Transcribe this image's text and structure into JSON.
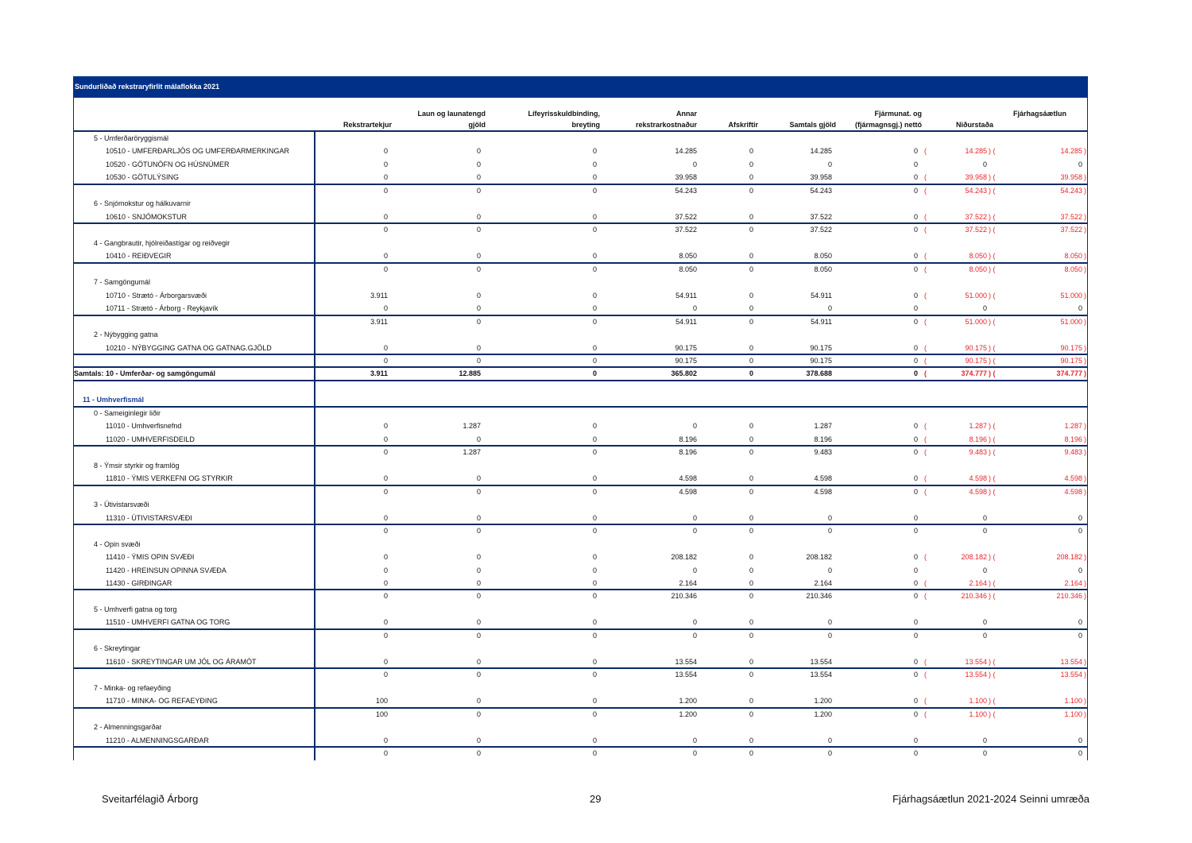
{
  "title": "Sundurliðað rekstraryfirlit málaflokka 2021",
  "columns": {
    "rekstrartekjur": "Rekstrartekjur",
    "laun_1": "Laun og launatengd",
    "laun_2": "gjöld",
    "lifeyris_1": "Lífeyrisskuldbinding,",
    "lifeyris_2": "breyting",
    "annar_1": "Annar",
    "annar_2": "rekstrarkostnaður",
    "afskriftir": "Afskriftir",
    "samtals": "Samtals gjöld",
    "fjarmunat_1": "Fjármunat. og",
    "fjarmunat_2": "(fjármagnsgj.) nettó",
    "nidurstada": "Niðurstaða",
    "fjarhagsaetlun": "Fjárhagsáætlun"
  },
  "colors": {
    "header_bg": "#003087",
    "line": "#0b2a66",
    "negative": "#e8232a",
    "section": "#1f3f9a"
  },
  "rows": [
    {
      "type": "group",
      "label": "5 - Umferðaröryggismál"
    },
    {
      "type": "item",
      "label": "10510 - UMFERÐARLJÓS OG UMFERÐARMERKINGAR",
      "v": [
        "0",
        "0",
        "0",
        "14.285",
        "0",
        "14.285",
        "0",
        "14.285",
        "14.285"
      ],
      "neg": true
    },
    {
      "type": "item",
      "label": "10520 - GÖTUNÖFN OG HÚSNÚMER",
      "v": [
        "0",
        "0",
        "0",
        "0",
        "0",
        "0",
        "0",
        "0",
        "0"
      ],
      "neg": false
    },
    {
      "type": "item",
      "label": "10530 - GÖTULÝSING",
      "v": [
        "0",
        "0",
        "0",
        "39.958",
        "0",
        "39.958",
        "0",
        "39.958",
        "39.958"
      ],
      "neg": true
    },
    {
      "type": "subtotal",
      "label": "",
      "v": [
        "0",
        "0",
        "0",
        "54.243",
        "0",
        "54.243",
        "0",
        "54.243",
        "54.243"
      ],
      "neg": true
    },
    {
      "type": "group",
      "label": "6 - Snjómokstur og hálkuvarnir"
    },
    {
      "type": "item",
      "label": "10610 - SNJÓMOKSTUR",
      "v": [
        "0",
        "0",
        "0",
        "37.522",
        "0",
        "37.522",
        "0",
        "37.522",
        "37.522"
      ],
      "neg": true
    },
    {
      "type": "subtotal",
      "label": "",
      "v": [
        "0",
        "0",
        "0",
        "37.522",
        "0",
        "37.522",
        "0",
        "37.522",
        "37.522"
      ],
      "neg": true
    },
    {
      "type": "group",
      "label": "4 - Gangbrautir, hjólreiðastígar og reiðvegir"
    },
    {
      "type": "item",
      "label": "10410 - REIÐVEGIR",
      "v": [
        "0",
        "0",
        "0",
        "8.050",
        "0",
        "8.050",
        "0",
        "8.050",
        "8.050"
      ],
      "neg": true
    },
    {
      "type": "subtotal",
      "label": "",
      "v": [
        "0",
        "0",
        "0",
        "8.050",
        "0",
        "8.050",
        "0",
        "8.050",
        "8.050"
      ],
      "neg": true
    },
    {
      "type": "group",
      "label": "7 - Samgöngumál"
    },
    {
      "type": "item",
      "label": "10710 - Strætó - Árborgarsvæði",
      "v": [
        "3.911",
        "0",
        "0",
        "54.911",
        "0",
        "54.911",
        "0",
        "51.000",
        "51.000"
      ],
      "neg": true
    },
    {
      "type": "item",
      "label": "10711 - Strætó - Árborg - Reykjavík",
      "v": [
        "0",
        "0",
        "0",
        "0",
        "0",
        "0",
        "0",
        "0",
        "0"
      ],
      "neg": false
    },
    {
      "type": "subtotal",
      "label": "",
      "v": [
        "3.911",
        "0",
        "0",
        "54.911",
        "0",
        "54.911",
        "0",
        "51.000",
        "51.000"
      ],
      "neg": true
    },
    {
      "type": "group",
      "label": "2 - Nýbygging gatna"
    },
    {
      "type": "item",
      "label": "10210 - NÝBYGGING GATNA OG GATNAG.GJÖLD",
      "v": [
        "0",
        "0",
        "0",
        "90.175",
        "0",
        "90.175",
        "0",
        "90.175",
        "90.175"
      ],
      "neg": true
    },
    {
      "type": "subtotal",
      "label": "",
      "v": [
        "0",
        "0",
        "0",
        "90.175",
        "0",
        "90.175",
        "0",
        "90.175",
        "90.175"
      ],
      "neg": true
    },
    {
      "type": "total",
      "label": "Samtals: 10 - Umferðar- og samgöngumál",
      "v": [
        "3.911",
        "12.885",
        "0",
        "365.802",
        "0",
        "378.688",
        "0",
        "374.777",
        "374.777"
      ],
      "neg": true
    },
    {
      "type": "blank",
      "label": ""
    },
    {
      "type": "section",
      "label": "11 - Umhverfismál"
    },
    {
      "type": "group",
      "label": "0 - Sameiginlegir liðir"
    },
    {
      "type": "item",
      "label": "11010 - Umhverfisnefnd",
      "v": [
        "0",
        "1.287",
        "0",
        "0",
        "0",
        "1.287",
        "0",
        "1.287",
        "1.287"
      ],
      "neg": true
    },
    {
      "type": "item",
      "label": "11020 - UMHVERFISDEILD",
      "v": [
        "0",
        "0",
        "0",
        "8.196",
        "0",
        "8.196",
        "0",
        "8.196",
        "8.196"
      ],
      "neg": true
    },
    {
      "type": "subtotal",
      "label": "",
      "v": [
        "0",
        "1.287",
        "0",
        "8.196",
        "0",
        "9.483",
        "0",
        "9.483",
        "9.483"
      ],
      "neg": true
    },
    {
      "type": "group",
      "label": "8 - Ýmsir styrkir og framlög"
    },
    {
      "type": "item",
      "label": "11810 - ÝMIS VERKEFNI OG STYRKIR",
      "v": [
        "0",
        "0",
        "0",
        "4.598",
        "0",
        "4.598",
        "0",
        "4.598",
        "4.598"
      ],
      "neg": true
    },
    {
      "type": "subtotal",
      "label": "",
      "v": [
        "0",
        "0",
        "0",
        "4.598",
        "0",
        "4.598",
        "0",
        "4.598",
        "4.598"
      ],
      "neg": true
    },
    {
      "type": "group",
      "label": "3 - Útivistarsvæði"
    },
    {
      "type": "item",
      "label": "11310 - ÚTIVISTARSVÆÐI",
      "v": [
        "0",
        "0",
        "0",
        "0",
        "0",
        "0",
        "0",
        "0",
        "0"
      ],
      "neg": false
    },
    {
      "type": "subtotal",
      "label": "",
      "v": [
        "0",
        "0",
        "0",
        "0",
        "0",
        "0",
        "0",
        "0",
        "0"
      ],
      "neg": false
    },
    {
      "type": "group",
      "label": "4 - Opin svæði"
    },
    {
      "type": "item",
      "label": "11410 - ÝMIS OPIN SVÆÐI",
      "v": [
        "0",
        "0",
        "0",
        "208.182",
        "0",
        "208.182",
        "0",
        "208.182",
        "208.182"
      ],
      "neg": true
    },
    {
      "type": "item",
      "label": "11420 - HREINSUN OPINNA SVÆÐA",
      "v": [
        "0",
        "0",
        "0",
        "0",
        "0",
        "0",
        "0",
        "0",
        "0"
      ],
      "neg": false
    },
    {
      "type": "item",
      "label": "11430 - GIRÐINGAR",
      "v": [
        "0",
        "0",
        "0",
        "2.164",
        "0",
        "2.164",
        "0",
        "2.164",
        "2.164"
      ],
      "neg": true
    },
    {
      "type": "subtotal",
      "label": "",
      "v": [
        "0",
        "0",
        "0",
        "210.346",
        "0",
        "210.346",
        "0",
        "210.346",
        "210.346"
      ],
      "neg": true
    },
    {
      "type": "group",
      "label": "5 - Umhverfi gatna og torg"
    },
    {
      "type": "item",
      "label": "11510 - UMHVERFI GATNA OG TORG",
      "v": [
        "0",
        "0",
        "0",
        "0",
        "0",
        "0",
        "0",
        "0",
        "0"
      ],
      "neg": false
    },
    {
      "type": "subtotal",
      "label": "",
      "v": [
        "0",
        "0",
        "0",
        "0",
        "0",
        "0",
        "0",
        "0",
        "0"
      ],
      "neg": false
    },
    {
      "type": "group",
      "label": "6 - Skreytingar"
    },
    {
      "type": "item",
      "label": "11610 - SKREYTINGAR UM JÓL OG ÁRAMÓT",
      "v": [
        "0",
        "0",
        "0",
        "13.554",
        "0",
        "13.554",
        "0",
        "13.554",
        "13.554"
      ],
      "neg": true
    },
    {
      "type": "subtotal",
      "label": "",
      "v": [
        "0",
        "0",
        "0",
        "13.554",
        "0",
        "13.554",
        "0",
        "13.554",
        "13.554"
      ],
      "neg": true
    },
    {
      "type": "group",
      "label": "7 - Minka- og refaeyðing"
    },
    {
      "type": "item",
      "label": "11710 - MINKA- OG REFAEYÐING",
      "v": [
        "100",
        "0",
        "0",
        "1.200",
        "0",
        "1.200",
        "0",
        "1.100",
        "1.100"
      ],
      "neg": true
    },
    {
      "type": "subtotal",
      "label": "",
      "v": [
        "100",
        "0",
        "0",
        "1.200",
        "0",
        "1.200",
        "0",
        "1.100",
        "1.100"
      ],
      "neg": true
    },
    {
      "type": "group",
      "label": "2 - Almenningsgarðar"
    },
    {
      "type": "item",
      "label": "11210 - ALMENNINGSGARÐAR",
      "v": [
        "0",
        "0",
        "0",
        "0",
        "0",
        "0",
        "0",
        "0",
        "0"
      ],
      "neg": false
    },
    {
      "type": "subtotal",
      "label": "",
      "v": [
        "0",
        "0",
        "0",
        "0",
        "0",
        "0",
        "0",
        "0",
        "0"
      ],
      "neg": false
    }
  ],
  "footer": {
    "left": "Sveitarfélagið Árborg",
    "page": "29",
    "right": "Fjárhagsáætlun 2021-2024 Seinni umræða"
  }
}
